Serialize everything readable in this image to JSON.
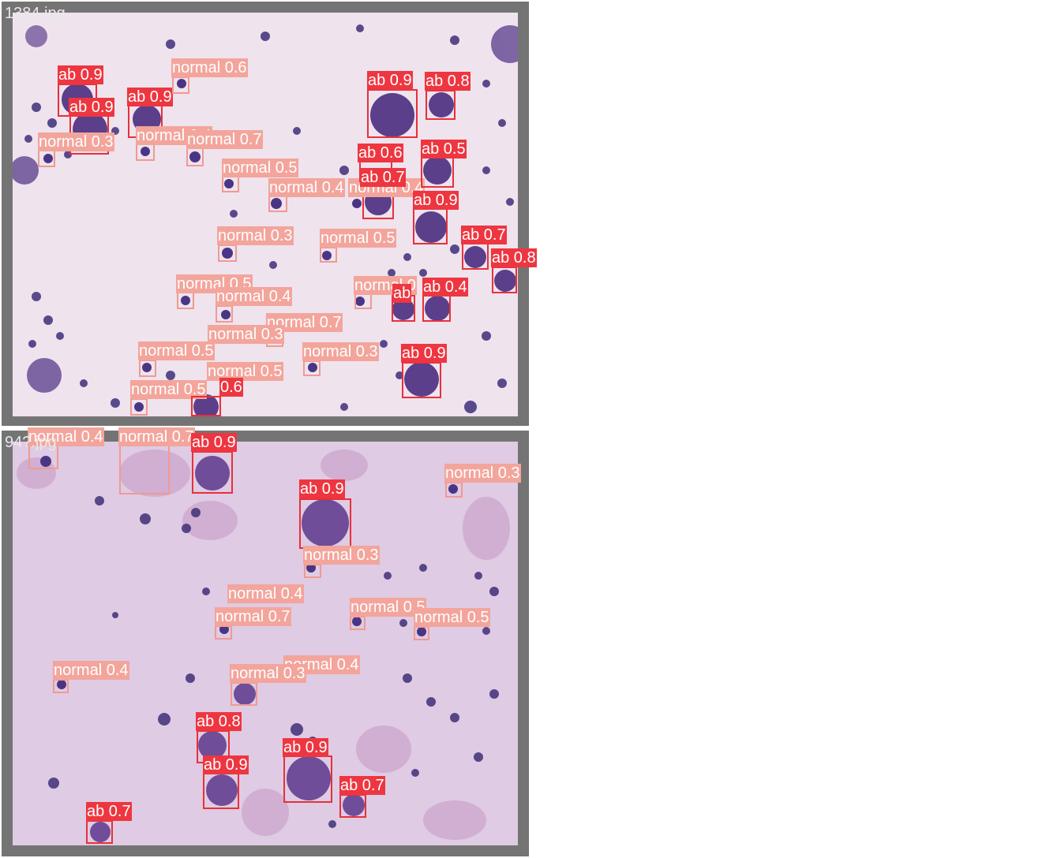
{
  "colors": {
    "ab": "#ee3640",
    "normal": "#f3a59c",
    "frame": "#747474"
  },
  "panels": [
    {
      "file": "1384.jpg",
      "background": "#efe3ee",
      "detections": [
        {
          "text": "ab 0.9",
          "cls": "ab"
        },
        {
          "text": "ab 0.9",
          "cls": "ab"
        },
        {
          "text": "ab 0.9",
          "cls": "ab"
        },
        {
          "text": "normal 0.6",
          "cls": "normal"
        },
        {
          "text": "normal 0.3",
          "cls": "normal"
        },
        {
          "text": "normal 0.4",
          "cls": "normal"
        },
        {
          "text": "normal 0.7",
          "cls": "normal"
        },
        {
          "text": "normal 0.5",
          "cls": "normal"
        },
        {
          "text": "normal 0.4",
          "cls": "normal"
        },
        {
          "text": "normal 0.4",
          "cls": "normal"
        },
        {
          "text": "normal 0.3",
          "cls": "normal"
        },
        {
          "text": "ab 0.9",
          "cls": "ab"
        },
        {
          "text": "ab 0.8",
          "cls": "ab"
        },
        {
          "text": "ab 0.6",
          "cls": "ab"
        },
        {
          "text": "ab 0.5",
          "cls": "ab"
        },
        {
          "text": "ab 0.7",
          "cls": "ab"
        },
        {
          "text": "ab 0.9",
          "cls": "ab"
        },
        {
          "text": "normal 0.5",
          "cls": "normal"
        },
        {
          "text": "ab 0.7",
          "cls": "ab"
        },
        {
          "text": "ab 0.8",
          "cls": "ab"
        },
        {
          "text": "normal 0.5",
          "cls": "normal"
        },
        {
          "text": "normal 0.4",
          "cls": "normal"
        },
        {
          "text": "normal 0.7",
          "cls": "normal"
        },
        {
          "text": "normal 0.3",
          "cls": "normal"
        },
        {
          "text": "normal 0.5",
          "cls": "normal"
        },
        {
          "text": "normal 0.3",
          "cls": "normal"
        },
        {
          "text": "normal 0.5",
          "cls": "normal"
        },
        {
          "text": "normal 0.5",
          "cls": "normal"
        },
        {
          "text": "0.6",
          "cls": "ab"
        },
        {
          "text": "normal 0",
          "cls": "normal"
        },
        {
          "text": "ab 0.4",
          "cls": "ab"
        },
        {
          "text": "ab",
          "cls": "ab"
        },
        {
          "text": "ab 0.9",
          "cls": "ab"
        }
      ]
    },
    {
      "file": "94?.jpg",
      "background": "#dfcbe3",
      "detections": [
        {
          "text": "normal 0.4",
          "cls": "normal"
        },
        {
          "text": "normal 0.7",
          "cls": "normal"
        },
        {
          "text": "ab 0.9",
          "cls": "ab"
        },
        {
          "text": "ab 0.9",
          "cls": "ab"
        },
        {
          "text": "normal 0.3",
          "cls": "normal"
        },
        {
          "text": "normal 0.3",
          "cls": "normal"
        },
        {
          "text": "normal 0.4",
          "cls": "normal"
        },
        {
          "text": "normal 0.7",
          "cls": "normal"
        },
        {
          "text": "normal 0.5",
          "cls": "normal"
        },
        {
          "text": "normal 0.5",
          "cls": "normal"
        },
        {
          "text": "normal 0.4",
          "cls": "normal"
        },
        {
          "text": "normal 0.4",
          "cls": "normal"
        },
        {
          "text": "normal 0.3",
          "cls": "normal"
        },
        {
          "text": "ab 0.8",
          "cls": "ab"
        },
        {
          "text": "ab 0.9",
          "cls": "ab"
        },
        {
          "text": "ab 0.9",
          "cls": "ab"
        },
        {
          "text": "ab 0.7",
          "cls": "ab"
        },
        {
          "text": "ab 0.7",
          "cls": "ab"
        }
      ]
    }
  ]
}
